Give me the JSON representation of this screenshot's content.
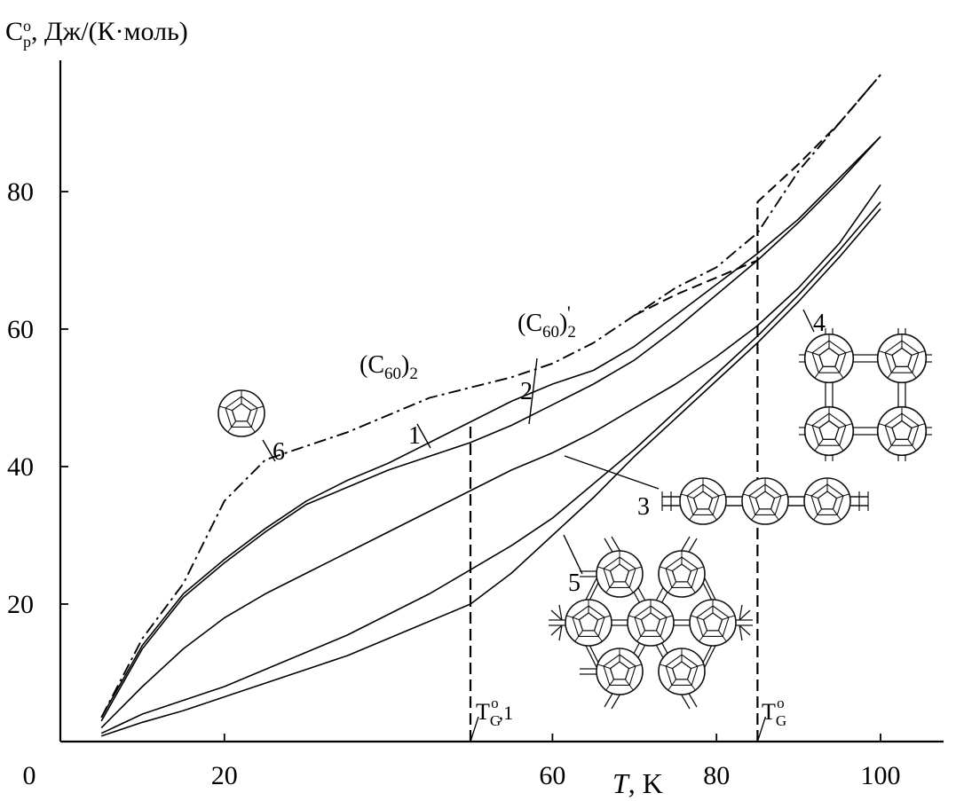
{
  "chart_data": {
    "type": "line",
    "ylabel": "C°p, Дж/(К·моль)",
    "ylabel_parts": {
      "main": "C",
      "sub": "p",
      "sup": "o",
      "rest": ", Дж/(К·моль)"
    },
    "xlabel": "T, K",
    "xlabel_parts": {
      "var": "T",
      "rest": ", K"
    },
    "xlim": [
      0,
      110
    ],
    "ylim": [
      0,
      100
    ],
    "x_ticks": [
      0,
      20,
      60,
      80,
      100
    ],
    "y_ticks": [
      20,
      40,
      60,
      80
    ],
    "grid": false,
    "series": [
      {
        "name": "1",
        "style": "solid",
        "x": [
          5,
          10,
          15,
          20,
          25,
          30,
          35,
          40,
          45,
          50,
          55,
          60,
          65,
          70,
          75,
          80,
          85,
          90,
          95,
          100
        ],
        "y": [
          3.5,
          14,
          21.5,
          26.5,
          31,
          35,
          38,
          40.5,
          43.5,
          46.5,
          49.5,
          52,
          54,
          57.5,
          62,
          66.5,
          71,
          76,
          82,
          88
        ]
      },
      {
        "name": "2",
        "style": "solid",
        "x": [
          5,
          10,
          15,
          20,
          25,
          30,
          35,
          40,
          45,
          50,
          55,
          60,
          65,
          70,
          75,
          80,
          85,
          90,
          95,
          100
        ],
        "y": [
          3,
          13.5,
          21,
          26,
          30.5,
          34.5,
          37,
          39.5,
          41.5,
          43.5,
          46,
          49,
          52,
          55.5,
          60,
          65,
          70,
          75.5,
          81.5,
          88
        ]
      },
      {
        "name": "3",
        "style": "solid",
        "x": [
          5,
          10,
          15,
          20,
          25,
          30,
          35,
          40,
          45,
          50,
          55,
          60,
          65,
          70,
          75,
          80,
          85,
          90,
          95,
          100
        ],
        "y": [
          2,
          8,
          13.5,
          18,
          21.5,
          24.5,
          27.5,
          30.5,
          33.5,
          36.5,
          39.5,
          42,
          45,
          48.5,
          52,
          56,
          60.5,
          66,
          72.5,
          81
        ]
      },
      {
        "name": "4",
        "style": "solid",
        "x": [
          5,
          10,
          15,
          20,
          25,
          30,
          35,
          40,
          45,
          50,
          55,
          60,
          65,
          70,
          75,
          80,
          85,
          90,
          95,
          100
        ],
        "y": [
          1.2,
          4,
          6,
          8,
          10.5,
          13,
          15.5,
          18.5,
          21.5,
          25,
          28.5,
          32.5,
          37.5,
          42.5,
          48,
          53.5,
          59,
          65,
          71.5,
          78.5
        ]
      },
      {
        "name": "5",
        "style": "solid",
        "x": [
          5,
          10,
          15,
          20,
          25,
          30,
          35,
          40,
          45,
          50,
          55,
          60,
          65,
          70,
          75,
          80,
          85,
          90,
          95,
          100
        ],
        "y": [
          0.8,
          2.8,
          4.5,
          6.5,
          8.5,
          10.5,
          12.5,
          15,
          17.5,
          20,
          24.5,
          30,
          35.5,
          41.5,
          47,
          52.5,
          58,
          64,
          70.5,
          77.5
        ]
      },
      {
        "name": "6",
        "style": "dash-dot",
        "x": [
          5,
          10,
          15,
          20,
          25,
          30,
          35,
          40,
          45,
          50,
          55,
          60,
          65,
          70,
          75,
          80,
          85,
          90,
          95,
          100
        ],
        "y": [
          3.5,
          15,
          23,
          35,
          41,
          43,
          45,
          47.5,
          50,
          51.5,
          53,
          55,
          58,
          62,
          66,
          69,
          74,
          83,
          90,
          97
        ]
      }
    ],
    "glass_transition_step": {
      "style": "dashed",
      "x": [
        70,
        75,
        80,
        85,
        85,
        90,
        95,
        100
      ],
      "y": [
        62,
        65,
        67.5,
        70,
        78.5,
        84,
        90,
        97
      ]
    },
    "vlines": [
      {
        "x": 50,
        "ymax": 46,
        "label_main": "T",
        "label_sub": "G",
        "label_sup": "o",
        "label_suffix": ",1",
        "style": "dashed"
      },
      {
        "x": 85,
        "ymax": 78.5,
        "label_main": "T",
        "label_sub": "G",
        "label_sup": "o",
        "label_suffix": "",
        "style": "dashed"
      }
    ],
    "annotations": [
      {
        "kind": "number",
        "text": "1",
        "target_series": "1"
      },
      {
        "kind": "number",
        "text": "2",
        "target_series": "2"
      },
      {
        "kind": "number",
        "text": "3",
        "target_series": "3"
      },
      {
        "kind": "number",
        "text": "4",
        "target_series": "4"
      },
      {
        "kind": "number",
        "text": "5",
        "target_series": "5"
      },
      {
        "kind": "number",
        "text": "6",
        "target_series": "6"
      },
      {
        "kind": "formula",
        "text": "(C60)2",
        "main": "(C",
        "sub": "60",
        "close": ")",
        "sub2": "2",
        "prime": ""
      },
      {
        "kind": "formula",
        "text": "(C60)2'",
        "main": "(C",
        "sub": "60",
        "close": ")",
        "sub2": "2",
        "prime": "'"
      }
    ],
    "structure_icons": [
      "fullerene-monomer-icon",
      "fullerene-linear-chain-icon",
      "fullerene-square-network-icon",
      "fullerene-hexagonal-network-icon"
    ]
  }
}
